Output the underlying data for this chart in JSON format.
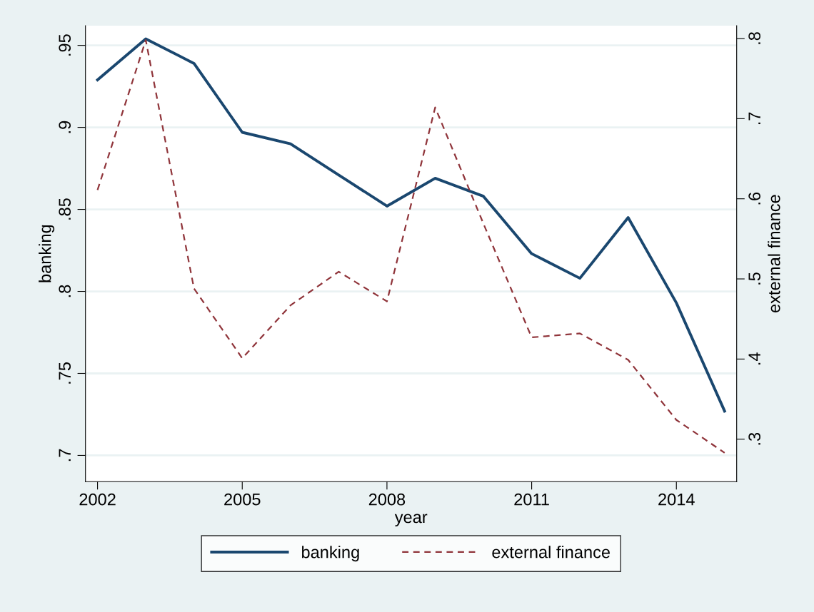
{
  "chart_data": {
    "type": "line",
    "xlabel": "year",
    "ylabel": "banking",
    "y2label": "external finance",
    "x": [
      2002,
      2003,
      2004,
      2005,
      2006,
      2007,
      2008,
      2009,
      2010,
      2011,
      2012,
      2013,
      2014,
      2015
    ],
    "series": [
      {
        "name": "banking",
        "color": "#1a476f",
        "line_style": "solid",
        "values": [
          0.929,
          0.954,
          0.939,
          0.897,
          0.89,
          0.871,
          0.852,
          0.869,
          0.858,
          0.823,
          0.808,
          0.845,
          0.793,
          0.727
        ]
      },
      {
        "name": "external finance",
        "color": "#90353b",
        "line_style": "dashed",
        "axis": "y2",
        "values": [
          0.611,
          0.798,
          0.488,
          0.401,
          0.467,
          0.509,
          0.472,
          0.714,
          0.569,
          0.427,
          0.432,
          0.399,
          0.324,
          0.283
        ]
      }
    ],
    "xlim": [
      2001.75,
      2015.25
    ],
    "xticks": [
      2002,
      2005,
      2008,
      2011,
      2014
    ],
    "ylim": [
      0.684,
      0.962
    ],
    "yticks": [
      {
        "value": 0.7,
        "label": ".7"
      },
      {
        "value": 0.75,
        "label": ".75"
      },
      {
        "value": 0.8,
        "label": ".8"
      },
      {
        "value": 0.85,
        "label": ".85"
      },
      {
        "value": 0.9,
        "label": ".9"
      },
      {
        "value": 0.95,
        "label": ".95"
      }
    ],
    "y2lim": [
      0.247,
      0.816
    ],
    "y2ticks": [
      {
        "value": 0.3,
        "label": ".3"
      },
      {
        "value": 0.4,
        "label": ".4"
      },
      {
        "value": 0.5,
        "label": ".5"
      },
      {
        "value": 0.6,
        "label": ".6"
      },
      {
        "value": 0.7,
        "label": ".7"
      },
      {
        "value": 0.8,
        "label": ".8"
      }
    ],
    "grid": "y",
    "legend": "bottom",
    "marker": "none"
  }
}
